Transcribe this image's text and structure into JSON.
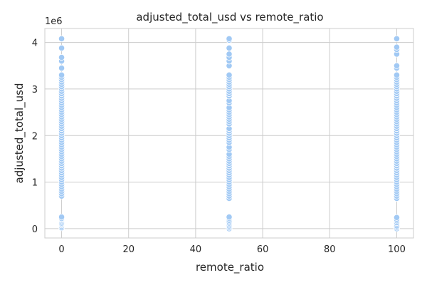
{
  "chart_data": {
    "type": "scatter",
    "title": "adjusted_total_usd vs remote_ratio",
    "xlabel": "remote_ratio",
    "ylabel": "adjusted_total_usd",
    "y_offset_label": "1e6",
    "xlim": [
      -5,
      105
    ],
    "ylim": [
      -0.2,
      4.3
    ],
    "x_ticks": [
      0,
      20,
      40,
      60,
      80,
      100
    ],
    "y_ticks": [
      0,
      1,
      2,
      3,
      4
    ],
    "grid": true,
    "point_color": "#a1c9f4",
    "point_edge_color": "#ffffff",
    "y_scale_note": "y values in millions (axis offset 1e6)",
    "series": [
      {
        "x": 0,
        "y": [
          0.02,
          0.05,
          0.08,
          0.1,
          0.12,
          0.15,
          0.18,
          0.2,
          0.22,
          0.25,
          0.7,
          0.75,
          0.8,
          0.85,
          0.9,
          0.95,
          1.0,
          1.05,
          1.1,
          1.15,
          1.2,
          1.25,
          1.3,
          1.35,
          1.4,
          1.45,
          1.5,
          1.55,
          1.6,
          1.65,
          1.7,
          1.75,
          1.8,
          1.85,
          1.9,
          1.95,
          2.0,
          2.05,
          2.1,
          2.15,
          2.2,
          2.25,
          2.3,
          2.35,
          2.4,
          2.45,
          2.5,
          2.55,
          2.6,
          2.65,
          2.7,
          2.75,
          2.8,
          2.85,
          2.9,
          2.95,
          3.0,
          3.05,
          3.1,
          3.15,
          3.2,
          3.25,
          3.3,
          3.45,
          3.6,
          3.68,
          3.88,
          4.08
        ]
      },
      {
        "x": 50,
        "y": [
          0.0,
          0.03,
          0.06,
          0.09,
          0.12,
          0.15,
          0.18,
          0.22,
          0.25,
          0.65,
          0.7,
          0.75,
          0.8,
          0.85,
          0.9,
          0.95,
          1.0,
          1.05,
          1.1,
          1.15,
          1.2,
          1.25,
          1.3,
          1.35,
          1.4,
          1.45,
          1.5,
          1.55,
          1.6,
          1.7,
          1.75,
          1.85,
          1.9,
          1.95,
          2.0,
          2.05,
          2.1,
          2.15,
          2.25,
          2.3,
          2.35,
          2.4,
          2.45,
          2.5,
          2.55,
          2.6,
          2.7,
          2.75,
          2.85,
          2.9,
          2.95,
          3.0,
          3.05,
          3.1,
          3.15,
          3.2,
          3.25,
          3.3,
          3.5,
          3.6,
          3.68,
          3.75,
          3.88,
          4.05,
          4.08
        ]
      },
      {
        "x": 100,
        "y": [
          0.0,
          0.03,
          0.06,
          0.1,
          0.13,
          0.17,
          0.2,
          0.24,
          0.65,
          0.7,
          0.75,
          0.8,
          0.85,
          0.9,
          0.95,
          1.0,
          1.05,
          1.1,
          1.15,
          1.2,
          1.25,
          1.3,
          1.35,
          1.4,
          1.45,
          1.5,
          1.55,
          1.6,
          1.65,
          1.7,
          1.75,
          1.8,
          1.85,
          1.9,
          1.95,
          2.0,
          2.05,
          2.1,
          2.15,
          2.2,
          2.25,
          2.3,
          2.35,
          2.4,
          2.45,
          2.5,
          2.55,
          2.6,
          2.65,
          2.7,
          2.75,
          2.8,
          2.85,
          2.9,
          2.95,
          3.0,
          3.05,
          3.1,
          3.15,
          3.2,
          3.25,
          3.3,
          3.45,
          3.5,
          3.75,
          3.85,
          3.9,
          4.08
        ]
      }
    ]
  }
}
